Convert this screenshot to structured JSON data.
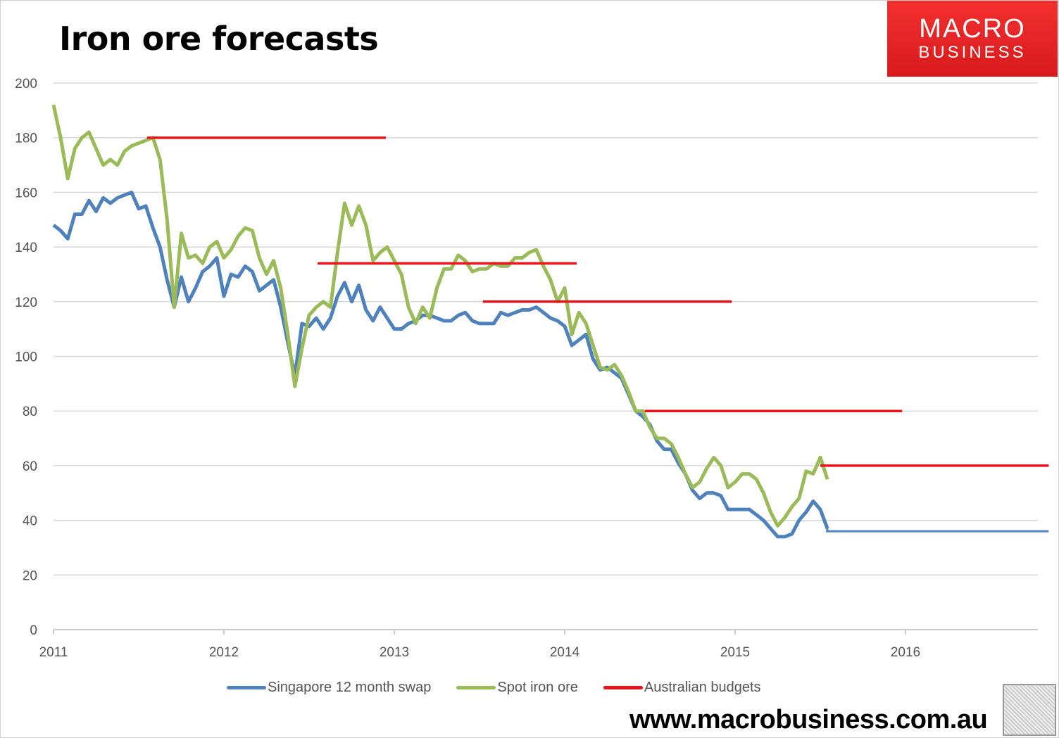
{
  "chart_data": {
    "type": "line",
    "title": "Iron ore forecasts",
    "xlabel": "",
    "ylabel": "",
    "xlim": [
      2011,
      2016.78
    ],
    "ylim": [
      0,
      200
    ],
    "x_ticks": [
      "2011",
      "2012",
      "2013",
      "2014",
      "2015",
      "2016"
    ],
    "y_ticks": [
      "0",
      "20",
      "40",
      "60",
      "80",
      "100",
      "120",
      "140",
      "160",
      "180",
      "200"
    ],
    "grid": "horizontal",
    "legend_position": "bottom",
    "series": [
      {
        "name": "Singapore 12 month swap",
        "color": "#4f81bd",
        "x_start": 2011.0,
        "x_step_years": 0.041667,
        "values": [
          148,
          146,
          143,
          152,
          152,
          157,
          153,
          158,
          156,
          158,
          159,
          160,
          154,
          155,
          147,
          140,
          128,
          118,
          129,
          120,
          125,
          131,
          133,
          136,
          122,
          130,
          129,
          133,
          131,
          124,
          126,
          128,
          118,
          105,
          93,
          112,
          111,
          114,
          110,
          114,
          122,
          127,
          120,
          126,
          117,
          113,
          118,
          114,
          110,
          110,
          112,
          113,
          115,
          115,
          114,
          113,
          113,
          115,
          116,
          113,
          112,
          112,
          112,
          116,
          115,
          116,
          117,
          117,
          118,
          116,
          114,
          113,
          111,
          104,
          106,
          108,
          99,
          95,
          96,
          94,
          92,
          86,
          80,
          78,
          75,
          69,
          66,
          66,
          61,
          57,
          51,
          48,
          50,
          50,
          49,
          44,
          44,
          44,
          44,
          42,
          40,
          37,
          34,
          34,
          35,
          40,
          43,
          47,
          44,
          37
        ],
        "forecast": {
          "from": 2015.54,
          "to": 2016.84,
          "value": 36
        }
      },
      {
        "name": "Spot iron ore",
        "color": "#9bbb59",
        "x_start": 2011.0,
        "x_step_years": 0.041667,
        "values": [
          192,
          180,
          165,
          176,
          180,
          182,
          176,
          170,
          172,
          170,
          175,
          177,
          178,
          179,
          180,
          172,
          150,
          118,
          145,
          136,
          137,
          134,
          140,
          142,
          136,
          139,
          144,
          147,
          146,
          136,
          130,
          135,
          125,
          108,
          89,
          103,
          115,
          118,
          120,
          118,
          138,
          156,
          148,
          155,
          148,
          135,
          138,
          140,
          135,
          130,
          118,
          112,
          118,
          114,
          125,
          132,
          132,
          137,
          135,
          131,
          132,
          132,
          134,
          133,
          133,
          136,
          136,
          138,
          139,
          133,
          128,
          120,
          125,
          108,
          116,
          112,
          104,
          96,
          95,
          97,
          93,
          87,
          80,
          80,
          74,
          70,
          70,
          68,
          63,
          57,
          52,
          54,
          59,
          63,
          60,
          52,
          54,
          57,
          57,
          55,
          50,
          43,
          38,
          41,
          45,
          48,
          58,
          57,
          63,
          55
        ]
      },
      {
        "name": "Australian budgets",
        "color": "#e8141c",
        "segments": [
          {
            "from": 2011.55,
            "to": 2012.95,
            "value": 180
          },
          {
            "from": 2012.55,
            "to": 2014.07,
            "value": 134
          },
          {
            "from": 2013.52,
            "to": 2014.98,
            "value": 120
          },
          {
            "from": 2014.47,
            "to": 2015.98,
            "value": 80
          },
          {
            "from": 2015.5,
            "to": 2016.84,
            "value": 60
          }
        ]
      }
    ]
  },
  "branding": {
    "logo_line1": "MACRO",
    "logo_line2": "BUSINESS",
    "url": "www.macrobusiness.com.au"
  }
}
